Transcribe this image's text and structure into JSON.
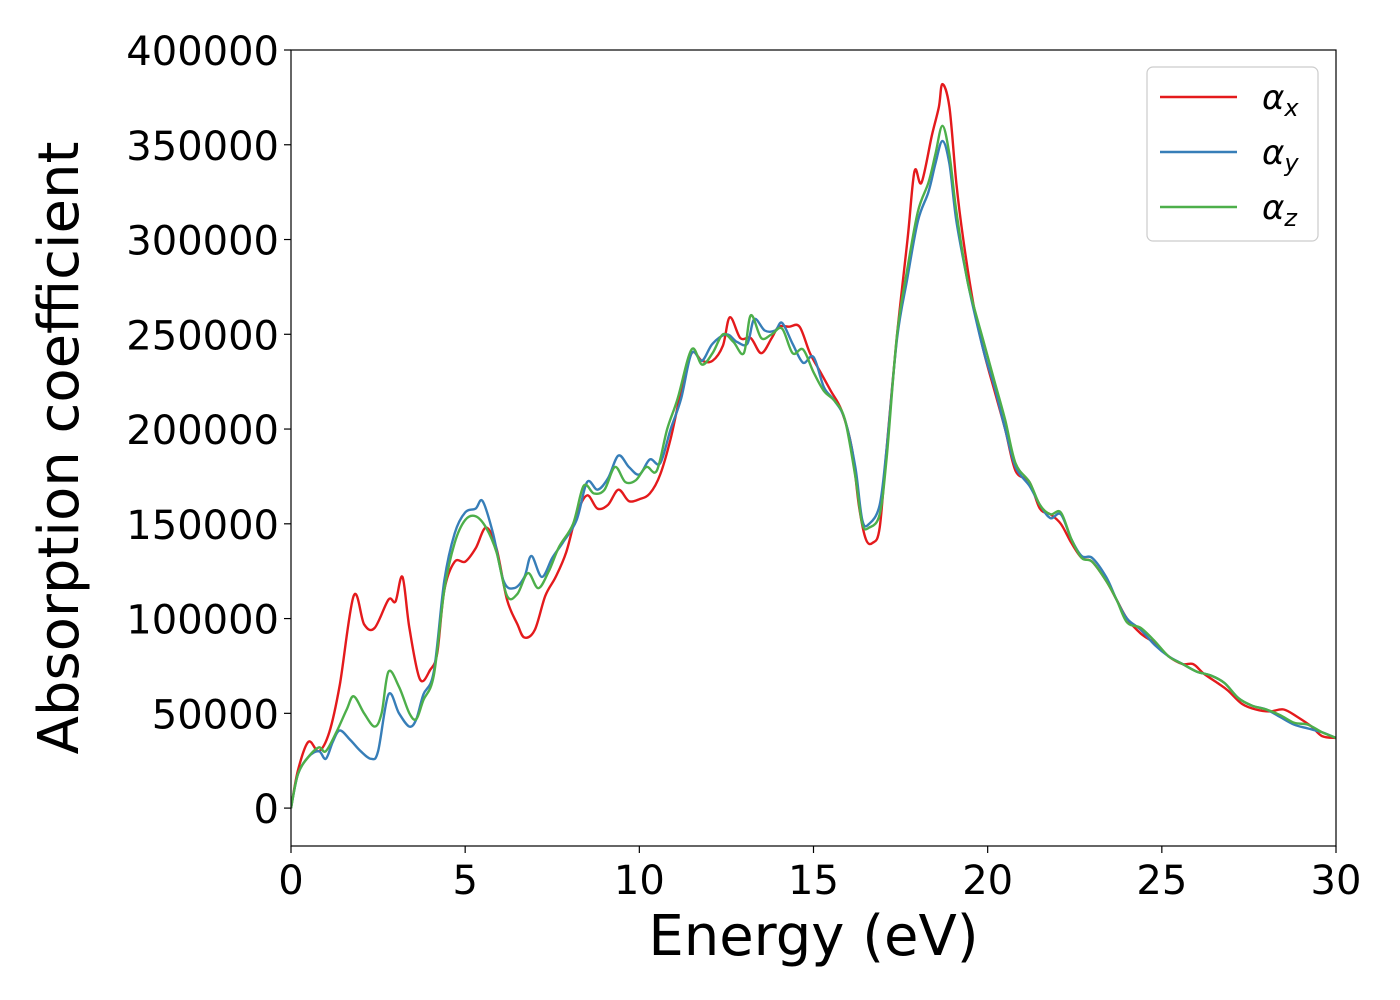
{
  "chart_data": {
    "type": "line",
    "title": "",
    "xlabel": "Energy (eV)",
    "ylabel": "Absorption coefficient",
    "xlim": [
      0,
      30
    ],
    "ylim": [
      -20000,
      400000
    ],
    "xticks": [
      0,
      5,
      10,
      15,
      20,
      25,
      30
    ],
    "yticks": [
      0,
      50000,
      100000,
      150000,
      200000,
      250000,
      300000,
      350000,
      400000
    ],
    "xtick_labels": [
      "0",
      "5",
      "10",
      "15",
      "20",
      "25",
      "30"
    ],
    "ytick_labels": [
      "0",
      "50000",
      "100000",
      "150000",
      "200000",
      "250000",
      "300000",
      "350000",
      "400000"
    ],
    "grid": false,
    "legend_position": "top-right",
    "series": [
      {
        "name": "α_x",
        "label_base": "α",
        "label_sub": "x",
        "color": "#e41a1c",
        "points": [
          [
            0,
            0
          ],
          [
            0.2,
            20000
          ],
          [
            0.5,
            35000
          ],
          [
            0.8,
            30000
          ],
          [
            1.1,
            40000
          ],
          [
            1.4,
            65000
          ],
          [
            1.8,
            112000
          ],
          [
            2.1,
            97000
          ],
          [
            2.4,
            95000
          ],
          [
            2.8,
            110000
          ],
          [
            3.0,
            109000
          ],
          [
            3.2,
            122000
          ],
          [
            3.4,
            95000
          ],
          [
            3.7,
            68000
          ],
          [
            4.0,
            73000
          ],
          [
            4.2,
            82000
          ],
          [
            4.4,
            115000
          ],
          [
            4.7,
            130000
          ],
          [
            5.0,
            130000
          ],
          [
            5.3,
            137000
          ],
          [
            5.6,
            148000
          ],
          [
            5.9,
            137000
          ],
          [
            6.2,
            110000
          ],
          [
            6.5,
            97000
          ],
          [
            6.7,
            90000
          ],
          [
            7.0,
            94000
          ],
          [
            7.3,
            112000
          ],
          [
            7.6,
            122000
          ],
          [
            7.9,
            135000
          ],
          [
            8.2,
            155000
          ],
          [
            8.5,
            165000
          ],
          [
            8.8,
            158000
          ],
          [
            9.1,
            160000
          ],
          [
            9.4,
            168000
          ],
          [
            9.7,
            162000
          ],
          [
            10.0,
            163000
          ],
          [
            10.3,
            166000
          ],
          [
            10.6,
            176000
          ],
          [
            10.9,
            195000
          ],
          [
            11.2,
            220000
          ],
          [
            11.5,
            240000
          ],
          [
            11.8,
            236000
          ],
          [
            12.1,
            236000
          ],
          [
            12.4,
            244000
          ],
          [
            12.6,
            259000
          ],
          [
            12.9,
            248000
          ],
          [
            13.2,
            248000
          ],
          [
            13.5,
            240000
          ],
          [
            13.8,
            248000
          ],
          [
            14.0,
            254000
          ],
          [
            14.3,
            254000
          ],
          [
            14.6,
            254000
          ],
          [
            14.9,
            240000
          ],
          [
            15.2,
            230000
          ],
          [
            15.5,
            220000
          ],
          [
            15.8,
            210000
          ],
          [
            16.1,
            190000
          ],
          [
            16.3,
            160000
          ],
          [
            16.5,
            142000
          ],
          [
            16.7,
            140000
          ],
          [
            16.9,
            148000
          ],
          [
            17.1,
            190000
          ],
          [
            17.4,
            250000
          ],
          [
            17.7,
            300000
          ],
          [
            17.9,
            336000
          ],
          [
            18.1,
            330000
          ],
          [
            18.4,
            355000
          ],
          [
            18.6,
            370000
          ],
          [
            18.7,
            382000
          ],
          [
            18.9,
            370000
          ],
          [
            19.1,
            330000
          ],
          [
            19.3,
            300000
          ],
          [
            19.6,
            265000
          ],
          [
            19.9,
            240000
          ],
          [
            20.2,
            220000
          ],
          [
            20.5,
            200000
          ],
          [
            20.8,
            178000
          ],
          [
            21.2,
            172000
          ],
          [
            21.5,
            158000
          ],
          [
            21.8,
            155000
          ],
          [
            22.1,
            150000
          ],
          [
            22.4,
            140000
          ],
          [
            22.7,
            132000
          ],
          [
            23.0,
            130000
          ],
          [
            23.4,
            120000
          ],
          [
            23.7,
            110000
          ],
          [
            24.0,
            100000
          ],
          [
            24.4,
            92000
          ],
          [
            24.8,
            87000
          ],
          [
            25.2,
            80000
          ],
          [
            25.6,
            76000
          ],
          [
            25.9,
            76000
          ],
          [
            26.2,
            71000
          ],
          [
            26.6,
            66000
          ],
          [
            26.9,
            62000
          ],
          [
            27.3,
            55000
          ],
          [
            27.7,
            52000
          ],
          [
            28.1,
            51000
          ],
          [
            28.5,
            52000
          ],
          [
            28.9,
            48000
          ],
          [
            29.3,
            43000
          ],
          [
            29.6,
            38000
          ],
          [
            30.0,
            37000
          ]
        ]
      },
      {
        "name": "α_y",
        "label_base": "α",
        "label_sub": "y",
        "color": "#377eb8",
        "points": [
          [
            0,
            0
          ],
          [
            0.2,
            18000
          ],
          [
            0.5,
            27000
          ],
          [
            0.8,
            30000
          ],
          [
            1.0,
            26000
          ],
          [
            1.2,
            35000
          ],
          [
            1.4,
            41000
          ],
          [
            1.7,
            36000
          ],
          [
            2.0,
            30000
          ],
          [
            2.3,
            26000
          ],
          [
            2.5,
            30000
          ],
          [
            2.8,
            60000
          ],
          [
            3.1,
            50000
          ],
          [
            3.4,
            43000
          ],
          [
            3.6,
            47000
          ],
          [
            3.8,
            60000
          ],
          [
            4.1,
            72000
          ],
          [
            4.4,
            120000
          ],
          [
            4.7,
            145000
          ],
          [
            5.0,
            156000
          ],
          [
            5.3,
            158000
          ],
          [
            5.5,
            162000
          ],
          [
            5.8,
            145000
          ],
          [
            6.1,
            120000
          ],
          [
            6.4,
            116000
          ],
          [
            6.7,
            122000
          ],
          [
            6.9,
            133000
          ],
          [
            7.2,
            122000
          ],
          [
            7.5,
            132000
          ],
          [
            7.8,
            140000
          ],
          [
            8.2,
            152000
          ],
          [
            8.5,
            172000
          ],
          [
            8.8,
            168000
          ],
          [
            9.1,
            174000
          ],
          [
            9.4,
            186000
          ],
          [
            9.7,
            180000
          ],
          [
            10.0,
            176000
          ],
          [
            10.3,
            184000
          ],
          [
            10.6,
            182000
          ],
          [
            10.9,
            200000
          ],
          [
            11.2,
            216000
          ],
          [
            11.5,
            240000
          ],
          [
            11.8,
            236000
          ],
          [
            12.1,
            245000
          ],
          [
            12.5,
            250000
          ],
          [
            12.8,
            246000
          ],
          [
            13.1,
            245000
          ],
          [
            13.3,
            258000
          ],
          [
            13.6,
            252000
          ],
          [
            13.9,
            252000
          ],
          [
            14.1,
            256000
          ],
          [
            14.4,
            245000
          ],
          [
            14.7,
            235000
          ],
          [
            15.0,
            238000
          ],
          [
            15.3,
            222000
          ],
          [
            15.6,
            215000
          ],
          [
            15.9,
            205000
          ],
          [
            16.2,
            180000
          ],
          [
            16.4,
            152000
          ],
          [
            16.6,
            150000
          ],
          [
            16.9,
            160000
          ],
          [
            17.1,
            190000
          ],
          [
            17.4,
            248000
          ],
          [
            17.7,
            280000
          ],
          [
            18.0,
            310000
          ],
          [
            18.3,
            325000
          ],
          [
            18.5,
            340000
          ],
          [
            18.7,
            352000
          ],
          [
            18.9,
            340000
          ],
          [
            19.1,
            310000
          ],
          [
            19.4,
            280000
          ],
          [
            19.6,
            263000
          ],
          [
            19.9,
            240000
          ],
          [
            20.2,
            222000
          ],
          [
            20.5,
            200000
          ],
          [
            20.8,
            180000
          ],
          [
            21.2,
            170000
          ],
          [
            21.5,
            160000
          ],
          [
            21.8,
            153000
          ],
          [
            22.1,
            155000
          ],
          [
            22.4,
            142000
          ],
          [
            22.7,
            133000
          ],
          [
            23.0,
            132000
          ],
          [
            23.4,
            122000
          ],
          [
            23.7,
            110000
          ],
          [
            24.0,
            100000
          ],
          [
            24.4,
            94000
          ],
          [
            24.8,
            86000
          ],
          [
            25.2,
            80000
          ],
          [
            25.6,
            76000
          ],
          [
            26.0,
            72000
          ],
          [
            26.4,
            70000
          ],
          [
            26.8,
            66000
          ],
          [
            27.2,
            58000
          ],
          [
            27.6,
            54000
          ],
          [
            28.0,
            52000
          ],
          [
            28.4,
            48000
          ],
          [
            28.8,
            44000
          ],
          [
            29.2,
            42000
          ],
          [
            29.6,
            40000
          ],
          [
            30.0,
            37000
          ]
        ]
      },
      {
        "name": "α_z",
        "label_base": "α",
        "label_sub": "z",
        "color": "#4daf4a",
        "points": [
          [
            0,
            0
          ],
          [
            0.2,
            18000
          ],
          [
            0.5,
            27000
          ],
          [
            0.8,
            32000
          ],
          [
            1.0,
            30000
          ],
          [
            1.3,
            40000
          ],
          [
            1.6,
            52000
          ],
          [
            1.8,
            59000
          ],
          [
            2.1,
            50000
          ],
          [
            2.4,
            43000
          ],
          [
            2.6,
            50000
          ],
          [
            2.8,
            72000
          ],
          [
            3.1,
            64000
          ],
          [
            3.4,
            50000
          ],
          [
            3.6,
            47000
          ],
          [
            3.8,
            57000
          ],
          [
            4.1,
            70000
          ],
          [
            4.4,
            115000
          ],
          [
            4.7,
            140000
          ],
          [
            5.0,
            152000
          ],
          [
            5.3,
            154000
          ],
          [
            5.6,
            148000
          ],
          [
            5.9,
            135000
          ],
          [
            6.2,
            112000
          ],
          [
            6.5,
            113000
          ],
          [
            6.8,
            124000
          ],
          [
            7.1,
            116000
          ],
          [
            7.4,
            125000
          ],
          [
            7.7,
            138000
          ],
          [
            8.1,
            150000
          ],
          [
            8.4,
            170000
          ],
          [
            8.7,
            166000
          ],
          [
            9.0,
            168000
          ],
          [
            9.3,
            180000
          ],
          [
            9.6,
            172000
          ],
          [
            9.9,
            173000
          ],
          [
            10.2,
            180000
          ],
          [
            10.5,
            178000
          ],
          [
            10.8,
            200000
          ],
          [
            11.1,
            216000
          ],
          [
            11.5,
            242000
          ],
          [
            11.8,
            234000
          ],
          [
            12.1,
            240000
          ],
          [
            12.4,
            250000
          ],
          [
            12.7,
            246000
          ],
          [
            13.0,
            240000
          ],
          [
            13.2,
            260000
          ],
          [
            13.5,
            248000
          ],
          [
            13.8,
            250000
          ],
          [
            14.1,
            253000
          ],
          [
            14.4,
            240000
          ],
          [
            14.7,
            242000
          ],
          [
            15.0,
            230000
          ],
          [
            15.3,
            220000
          ],
          [
            15.6,
            215000
          ],
          [
            15.9,
            205000
          ],
          [
            16.2,
            175000
          ],
          [
            16.4,
            150000
          ],
          [
            16.6,
            148000
          ],
          [
            16.9,
            155000
          ],
          [
            17.1,
            185000
          ],
          [
            17.4,
            250000
          ],
          [
            17.7,
            285000
          ],
          [
            18.0,
            315000
          ],
          [
            18.3,
            330000
          ],
          [
            18.5,
            345000
          ],
          [
            18.7,
            360000
          ],
          [
            18.9,
            345000
          ],
          [
            19.1,
            315000
          ],
          [
            19.4,
            280000
          ],
          [
            19.6,
            265000
          ],
          [
            19.9,
            245000
          ],
          [
            20.2,
            225000
          ],
          [
            20.5,
            205000
          ],
          [
            20.8,
            182000
          ],
          [
            21.2,
            172000
          ],
          [
            21.5,
            160000
          ],
          [
            21.8,
            155000
          ],
          [
            22.1,
            156000
          ],
          [
            22.4,
            142000
          ],
          [
            22.7,
            132000
          ],
          [
            23.0,
            130000
          ],
          [
            23.4,
            120000
          ],
          [
            23.7,
            110000
          ],
          [
            24.0,
            98000
          ],
          [
            24.4,
            95000
          ],
          [
            24.8,
            88000
          ],
          [
            25.2,
            80000
          ],
          [
            25.6,
            76000
          ],
          [
            26.0,
            72000
          ],
          [
            26.4,
            70000
          ],
          [
            26.8,
            66000
          ],
          [
            27.2,
            58000
          ],
          [
            27.6,
            54000
          ],
          [
            28.0,
            52000
          ],
          [
            28.4,
            49000
          ],
          [
            28.8,
            45000
          ],
          [
            29.2,
            44000
          ],
          [
            29.6,
            40000
          ],
          [
            30.0,
            37000
          ]
        ]
      }
    ]
  }
}
